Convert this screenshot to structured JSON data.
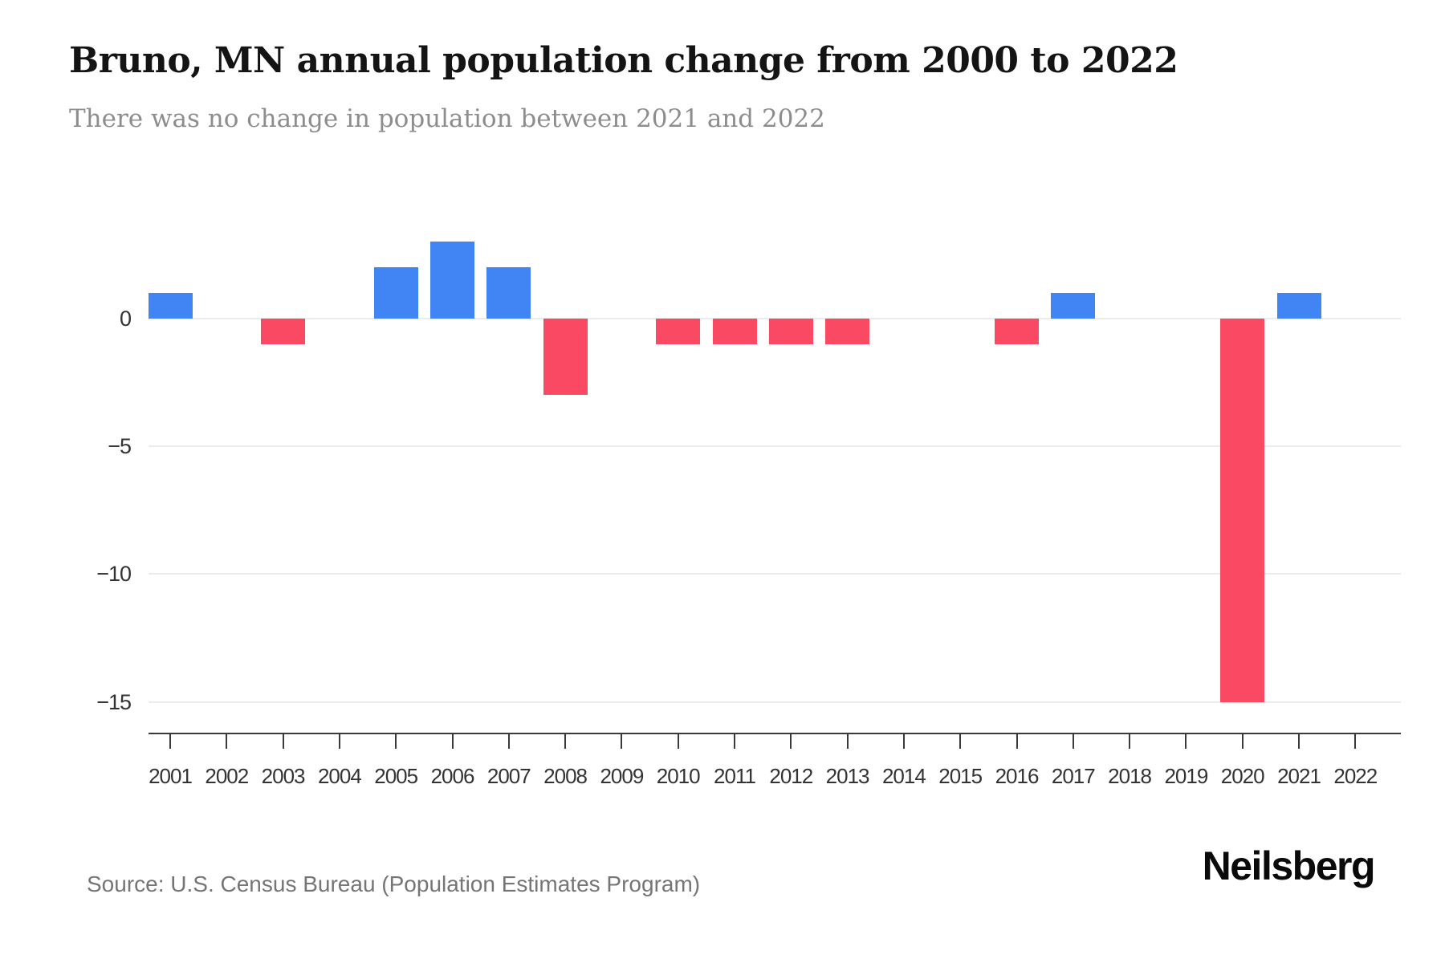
{
  "header": {
    "title": "Bruno, MN annual population change from 2000 to 2022",
    "subtitle": "There was no change in population between 2021 and 2022"
  },
  "chart_data": {
    "type": "bar",
    "title": "Bruno, MN annual population change from 2000 to 2022",
    "subtitle": "There was no change in population between 2021 and 2022",
    "categories": [
      "2001",
      "2002",
      "2003",
      "2004",
      "2005",
      "2006",
      "2007",
      "2008",
      "2009",
      "2010",
      "2011",
      "2012",
      "2013",
      "2014",
      "2015",
      "2016",
      "2017",
      "2018",
      "2019",
      "2020",
      "2021",
      "2022"
    ],
    "values": [
      1,
      0,
      -1,
      0,
      2,
      3,
      2,
      -3,
      0,
      -1,
      -1,
      -1,
      -1,
      0,
      0,
      -1,
      1,
      0,
      0,
      -15,
      1,
      0
    ],
    "xlabel": "",
    "ylabel": "",
    "ylim": [
      -16.2,
      4.6
    ],
    "yticks": [
      0,
      -5,
      -10,
      -15
    ],
    "ytick_labels": [
      "0",
      "−5",
      "−10",
      "−15"
    ],
    "grid": true,
    "legend_position": "none",
    "colors": {
      "positive": "#4184F4",
      "negative": "#FA4A63",
      "gridline": "#ECECEC",
      "axis": "#3A3A3A",
      "tick_label": "#333333"
    }
  },
  "footer": {
    "source": "Source: U.S. Census Bureau (Population Estimates Program)",
    "brand": "Neilsberg"
  }
}
